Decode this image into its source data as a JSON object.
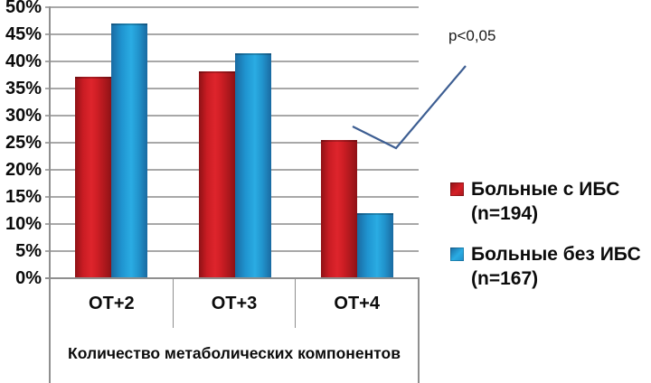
{
  "chart_data": {
    "type": "bar",
    "title": "",
    "categories": [
      "ОТ+2",
      "ОТ+3",
      "ОТ+4"
    ],
    "series": [
      {
        "name": "Больные с ИБС (n=194)",
        "color": "#C0161C",
        "values": [
          37.0,
          38.0,
          25.3
        ]
      },
      {
        "name": "Больные без ИБС (n=167)",
        "color": "#1E9CD8",
        "values": [
          46.9,
          41.3,
          11.8
        ]
      }
    ],
    "xlabel": "Количество метаболических компонентов",
    "ylabel": "",
    "ylim": [
      0,
      50
    ],
    "ytick_step": 5,
    "ytick_suffix": "%",
    "grid": true,
    "legend_position": "right",
    "annotation": "p<0,05",
    "colors": {
      "gridline": "#a8a8a8",
      "axis": "#8f8f8f",
      "annotation_line": "#3d5e92",
      "text": "#0c0c0c"
    }
  },
  "legend": {
    "items": [
      {
        "line1": "Больные с ИБС",
        "line2": "(n=194)",
        "color": "#C0161C"
      },
      {
        "line1": "Больные без ИБС",
        "line2": "(n=167)",
        "color": "#1E9CD8"
      }
    ]
  },
  "annotation": {
    "label": "p<0,05"
  }
}
